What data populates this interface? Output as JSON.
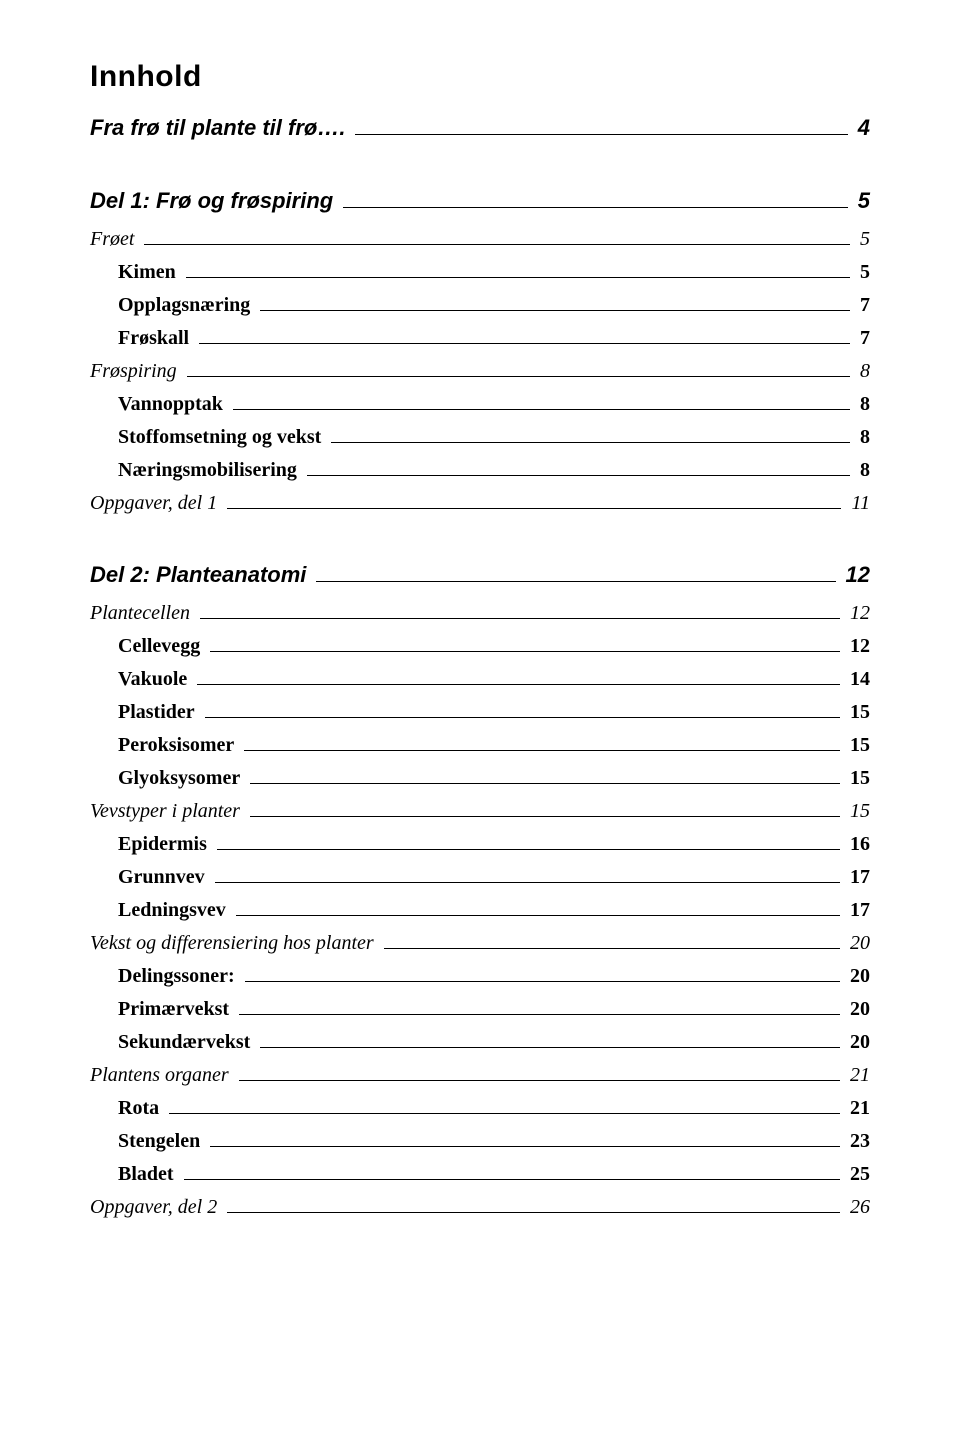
{
  "title": "Innhold",
  "toc": [
    {
      "level": "h2-plain",
      "indent": 0,
      "label": "Fra frø til plante til frø….",
      "page": "4"
    },
    {
      "level": "h2",
      "indent": 0,
      "label": "Del 1: Frø og frøspiring",
      "page": "5"
    },
    {
      "level": "h3",
      "indent": 0,
      "label": "Frøet",
      "page": "5"
    },
    {
      "level": "h4",
      "indent": 1,
      "label": "Kimen",
      "page": "5"
    },
    {
      "level": "h4",
      "indent": 1,
      "label": "Opplagsnæring",
      "page": "7"
    },
    {
      "level": "h4",
      "indent": 1,
      "label": "Frøskall",
      "page": "7"
    },
    {
      "level": "h3",
      "indent": 0,
      "label": "Frøspiring",
      "page": "8"
    },
    {
      "level": "h4",
      "indent": 1,
      "label": "Vannopptak",
      "page": "8"
    },
    {
      "level": "h4",
      "indent": 1,
      "label": "Stoffomsetning og vekst",
      "page": "8"
    },
    {
      "level": "h4",
      "indent": 1,
      "label": "Næringsmobilisering",
      "page": "8"
    },
    {
      "level": "h3",
      "indent": 0,
      "label": "Oppgaver, del 1",
      "page": "11"
    },
    {
      "level": "h2",
      "indent": 0,
      "label": "Del 2: Planteanatomi",
      "page": "12"
    },
    {
      "level": "h3",
      "indent": 0,
      "label": "Plantecellen",
      "page": "12"
    },
    {
      "level": "h4",
      "indent": 1,
      "label": "Cellevegg",
      "page": "12"
    },
    {
      "level": "h4",
      "indent": 1,
      "label": "Vakuole",
      "page": "14"
    },
    {
      "level": "h4",
      "indent": 1,
      "label": "Plastider",
      "page": "15"
    },
    {
      "level": "h4",
      "indent": 1,
      "label": "Peroksisomer",
      "page": "15"
    },
    {
      "level": "h4",
      "indent": 1,
      "label": "Glyoksysomer",
      "page": "15"
    },
    {
      "level": "h3",
      "indent": 0,
      "label": "Vevstyper i planter",
      "page": "15"
    },
    {
      "level": "h4",
      "indent": 1,
      "label": "Epidermis",
      "page": "16"
    },
    {
      "level": "h4",
      "indent": 1,
      "label": "Grunnvev",
      "page": "17"
    },
    {
      "level": "h4",
      "indent": 1,
      "label": "Ledningsvev",
      "page": "17"
    },
    {
      "level": "h3",
      "indent": 0,
      "label": "Vekst og differensiering hos planter",
      "page": "20"
    },
    {
      "level": "h4",
      "indent": 1,
      "label": "Delingssoner:",
      "page": "20"
    },
    {
      "level": "h4",
      "indent": 1,
      "label": "Primærvekst",
      "page": "20"
    },
    {
      "level": "h4",
      "indent": 1,
      "label": "Sekundærvekst",
      "page": "20"
    },
    {
      "level": "h3",
      "indent": 0,
      "label": "Plantens organer",
      "page": "21"
    },
    {
      "level": "h4",
      "indent": 1,
      "label": "Rota",
      "page": "21"
    },
    {
      "level": "h4",
      "indent": 1,
      "label": "Stengelen",
      "page": "23"
    },
    {
      "level": "h4",
      "indent": 1,
      "label": "Bladet",
      "page": "25"
    },
    {
      "level": "h3",
      "indent": 0,
      "label": "Oppgaver, del 2",
      "page": "26"
    }
  ]
}
